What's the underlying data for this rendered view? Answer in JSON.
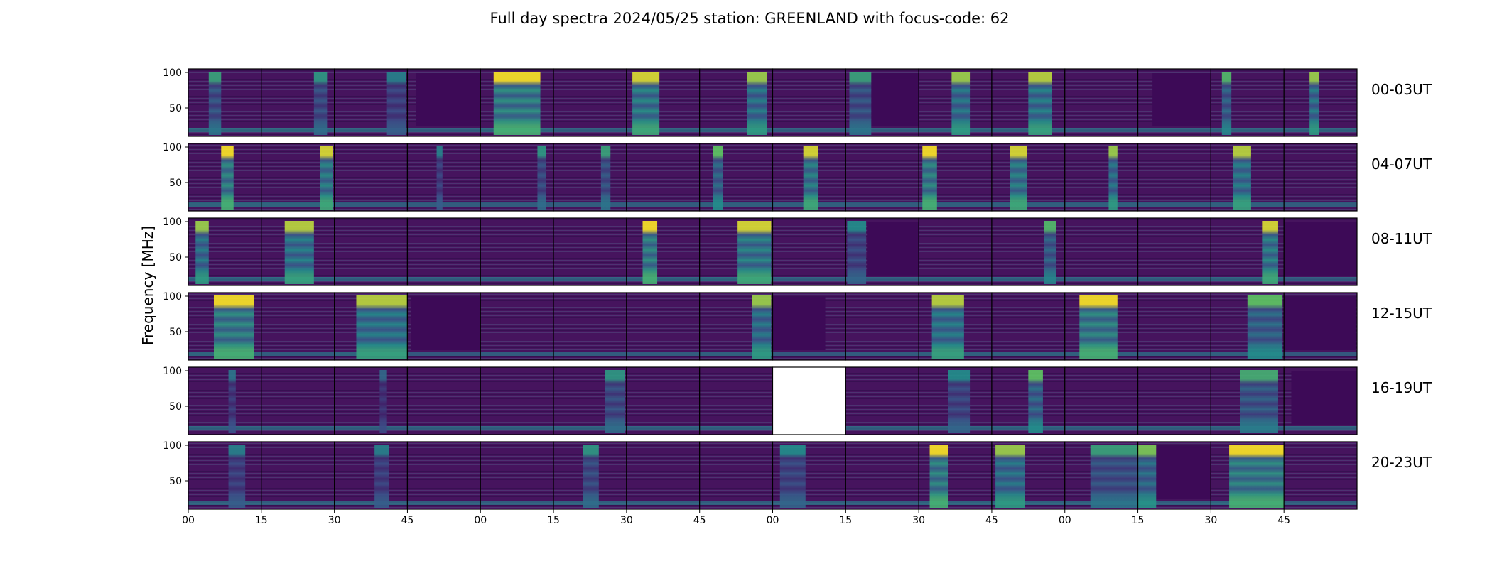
{
  "chart_data": {
    "type": "heatmap",
    "title": "Full day spectra 2024/05/25 station: GREENLAND with focus-code: 62",
    "ylabel": "Frequency [MHz]",
    "xlabel": "",
    "ylim": [
      10,
      105
    ],
    "y_ticks": [
      "100",
      "50"
    ],
    "x_ticks": [
      "00",
      "15",
      "30",
      "45",
      "00",
      "15",
      "30",
      "45",
      "00",
      "15",
      "30",
      "45",
      "00",
      "15",
      "30",
      "45"
    ],
    "colormap": "viridis",
    "colors": {
      "background": "#46145e",
      "empty_panel": "#ffffff",
      "frame": "#000000"
    },
    "rows": [
      {
        "label": "00-03UT",
        "panels": [
          {
            "bursts": [
              [
                0.28,
                0.45,
                0.6
              ]
            ],
            "noise": 0.5
          },
          {
            "bursts": [
              [
                0.72,
                0.9,
                0.55
              ]
            ],
            "noise": 0.5
          },
          {
            "bursts": [
              [
                0.72,
                0.98,
                0.45
              ]
            ],
            "noise": 0.4
          },
          {
            "dark": [
              0.12,
              1.0
            ],
            "noise": 0.3
          },
          {
            "bursts": [
              [
                0.18,
                0.82,
                1.0
              ]
            ],
            "noise": 0.5
          },
          {
            "bursts": [],
            "noise": 0.3
          },
          {
            "bursts": [
              [
                0.08,
                0.45,
                0.95
              ]
            ],
            "noise": 0.4
          },
          {
            "bursts": [
              [
                0.65,
                0.92,
                0.85
              ]
            ],
            "noise": 0.4
          },
          {
            "bursts": [],
            "noise": 0.3
          },
          {
            "bursts": [
              [
                0.05,
                0.35,
                0.6
              ]
            ],
            "dark": [
              0.35,
              1.0
            ],
            "noise": 0.3
          },
          {
            "bursts": [
              [
                0.45,
                0.7,
                0.85
              ]
            ],
            "noise": 0.4
          },
          {
            "bursts": [
              [
                0.5,
                0.82,
                0.9
              ]
            ],
            "noise": 0.4
          },
          {
            "bursts": [],
            "noise": 0.3
          },
          {
            "dark": [
              0.2,
              1.0
            ],
            "noise": 0.3
          },
          {
            "bursts": [
              [
                0.15,
                0.28,
                0.7
              ]
            ],
            "noise": 0.4
          },
          {
            "bursts": [
              [
                0.35,
                0.48,
                0.85
              ]
            ],
            "noise": 0.4
          }
        ]
      },
      {
        "label": "04-07UT",
        "panels": [
          {
            "bursts": [
              [
                0.45,
                0.62,
                1.0
              ]
            ],
            "noise": 0.5
          },
          {
            "bursts": [
              [
                0.8,
                0.98,
                0.95
              ]
            ],
            "noise": 0.5
          },
          {
            "bursts": [],
            "noise": 0.3
          },
          {
            "bursts": [
              [
                0.4,
                0.48,
                0.45
              ]
            ],
            "noise": 0.3
          },
          {
            "bursts": [
              [
                0.78,
                0.9,
                0.55
              ]
            ],
            "noise": 0.3
          },
          {
            "bursts": [
              [
                0.65,
                0.78,
                0.6
              ]
            ],
            "noise": 0.3
          },
          {
            "bursts": [],
            "noise": 0.3
          },
          {
            "bursts": [
              [
                0.18,
                0.32,
                0.75
              ]
            ],
            "noise": 0.4
          },
          {
            "bursts": [
              [
                0.42,
                0.62,
                0.95
              ]
            ],
            "noise": 0.4
          },
          {
            "bursts": [],
            "noise": 0.3
          },
          {
            "bursts": [
              [
                0.05,
                0.25,
                1.0
              ]
            ],
            "noise": 0.4
          },
          {
            "bursts": [
              [
                0.25,
                0.48,
                0.95
              ]
            ],
            "noise": 0.4
          },
          {
            "bursts": [
              [
                0.6,
                0.72,
                0.85
              ]
            ],
            "noise": 0.4
          },
          {
            "bursts": [],
            "noise": 0.3
          },
          {
            "bursts": [
              [
                0.3,
                0.55,
                0.9
              ]
            ],
            "noise": 0.4
          },
          {
            "bursts": [],
            "noise": 0.3
          }
        ]
      },
      {
        "label": "08-11UT",
        "panels": [
          {
            "bursts": [
              [
                0.1,
                0.28,
                0.85
              ]
            ],
            "noise": 0.4
          },
          {
            "bursts": [
              [
                0.32,
                0.72,
                0.9
              ]
            ],
            "noise": 0.5
          },
          {
            "bursts": [],
            "noise": 0.3
          },
          {
            "bursts": [],
            "noise": 0.3
          },
          {
            "bursts": [],
            "noise": 0.3
          },
          {
            "bursts": [],
            "noise": 0.3
          },
          {
            "bursts": [
              [
                0.22,
                0.42,
                1.0
              ]
            ],
            "noise": 0.4
          },
          {
            "bursts": [
              [
                0.52,
                0.98,
                0.95
              ]
            ],
            "noise": 0.5
          },
          {
            "bursts": [],
            "noise": 0.3
          },
          {
            "bursts": [
              [
                0.02,
                0.28,
                0.5
              ]
            ],
            "dark": [
              0.3,
              1.0
            ],
            "noise": 0.3
          },
          {
            "bursts": [],
            "noise": 0.4
          },
          {
            "bursts": [
              [
                0.72,
                0.88,
                0.7
              ]
            ],
            "noise": 0.4
          },
          {
            "bursts": [],
            "noise": 0.3
          },
          {
            "bursts": [],
            "noise": 0.3
          },
          {
            "bursts": [
              [
                0.7,
                0.92,
                0.95
              ]
            ],
            "noise": 0.4
          },
          {
            "dark": [
              0.0,
              1.0
            ],
            "noise": 0.2
          }
        ]
      },
      {
        "label": "12-15UT",
        "panels": [
          {
            "bursts": [
              [
                0.35,
                0.9,
                1.0
              ]
            ],
            "noise": 0.5
          },
          {
            "bursts": [],
            "noise": 0.3
          },
          {
            "bursts": [
              [
                0.3,
                1.0,
                0.9
              ]
            ],
            "noise": 0.5
          },
          {
            "dark": [
              0.05,
              1.0
            ],
            "noise": 0.2
          },
          {
            "bursts": [],
            "noise": 0.3
          },
          {
            "bursts": [],
            "noise": 0.3
          },
          {
            "bursts": [],
            "noise": 0.3
          },
          {
            "bursts": [
              [
                0.72,
                0.98,
                0.85
              ]
            ],
            "noise": 0.4
          },
          {
            "dark": [
              0.0,
              0.72
            ],
            "noise": 0.2
          },
          {
            "bursts": [],
            "noise": 0.3
          },
          {
            "bursts": [
              [
                0.18,
                0.62,
                0.9
              ]
            ],
            "noise": 0.4
          },
          {
            "bursts": [],
            "noise": 0.4
          },
          {
            "bursts": [
              [
                0.2,
                0.72,
                1.0
              ]
            ],
            "noise": 0.4
          },
          {
            "bursts": [],
            "noise": 0.3
          },
          {
            "bursts": [
              [
                0.5,
                0.98,
                0.75
              ]
            ],
            "noise": 0.4
          },
          {
            "dark": [
              0.0,
              0.98
            ],
            "noise": 0.2
          }
        ]
      },
      {
        "label": "16-19UT",
        "panels": [
          {
            "bursts": [
              [
                0.55,
                0.65,
                0.4
              ]
            ],
            "noise": 0.4
          },
          {
            "bursts": [],
            "noise": 0.3
          },
          {
            "bursts": [
              [
                0.62,
                0.72,
                0.35
              ]
            ],
            "noise": 0.35
          },
          {
            "bursts": [],
            "noise": 0.35
          },
          {
            "bursts": [],
            "noise": 0.35
          },
          {
            "bursts": [
              [
                0.7,
                0.98,
                0.55
              ]
            ],
            "noise": 0.4
          },
          {
            "bursts": [],
            "noise": 0.35
          },
          {
            "bursts": [],
            "noise": 0.35
          },
          {
            "empty": true
          },
          {
            "bursts": [],
            "noise": 0.35
          },
          {
            "bursts": [
              [
                0.4,
                0.7,
                0.5
              ]
            ],
            "noise": 0.4
          },
          {
            "bursts": [
              [
                0.5,
                0.7,
                0.75
              ]
            ],
            "noise": 0.4
          },
          {
            "bursts": [],
            "noise": 0.3
          },
          {
            "bursts": [],
            "noise": 0.35
          },
          {
            "bursts": [
              [
                0.4,
                0.92,
                0.65
              ]
            ],
            "noise": 0.4
          },
          {
            "dark": [
              0.1,
              1.0
            ],
            "noise": 0.3
          }
        ]
      },
      {
        "label": "20-23UT",
        "panels": [
          {
            "bursts": [
              [
                0.55,
                0.78,
                0.45
              ]
            ],
            "noise": 0.4
          },
          {
            "bursts": [],
            "noise": 0.3
          },
          {
            "bursts": [
              [
                0.55,
                0.75,
                0.45
              ]
            ],
            "noise": 0.4
          },
          {
            "bursts": [],
            "noise": 0.3
          },
          {
            "bursts": [],
            "noise": 0.3
          },
          {
            "bursts": [
              [
                0.4,
                0.62,
                0.55
              ]
            ],
            "noise": 0.4
          },
          {
            "bursts": [],
            "noise": 0.3
          },
          {
            "bursts": [],
            "noise": 0.3
          },
          {
            "bursts": [
              [
                0.1,
                0.45,
                0.5
              ]
            ],
            "noise": 0.4
          },
          {
            "bursts": [],
            "noise": 0.3
          },
          {
            "bursts": [
              [
                0.15,
                0.4,
                1.0
              ]
            ],
            "noise": 0.45
          },
          {
            "bursts": [
              [
                0.05,
                0.45,
                0.85
              ]
            ],
            "noise": 0.45
          },
          {
            "bursts": [
              [
                0.35,
                1.0,
                0.6
              ]
            ],
            "noise": 0.4
          },
          {
            "bursts": [
              [
                0.0,
                0.25,
                0.8
              ]
            ],
            "dark": [
              0.25,
              1.0
            ],
            "noise": 0.3
          },
          {
            "bursts": [
              [
                0.25,
                1.0,
                1.0
              ]
            ],
            "noise": 0.5
          },
          {
            "bursts": [],
            "noise": 0.3
          }
        ]
      }
    ]
  }
}
